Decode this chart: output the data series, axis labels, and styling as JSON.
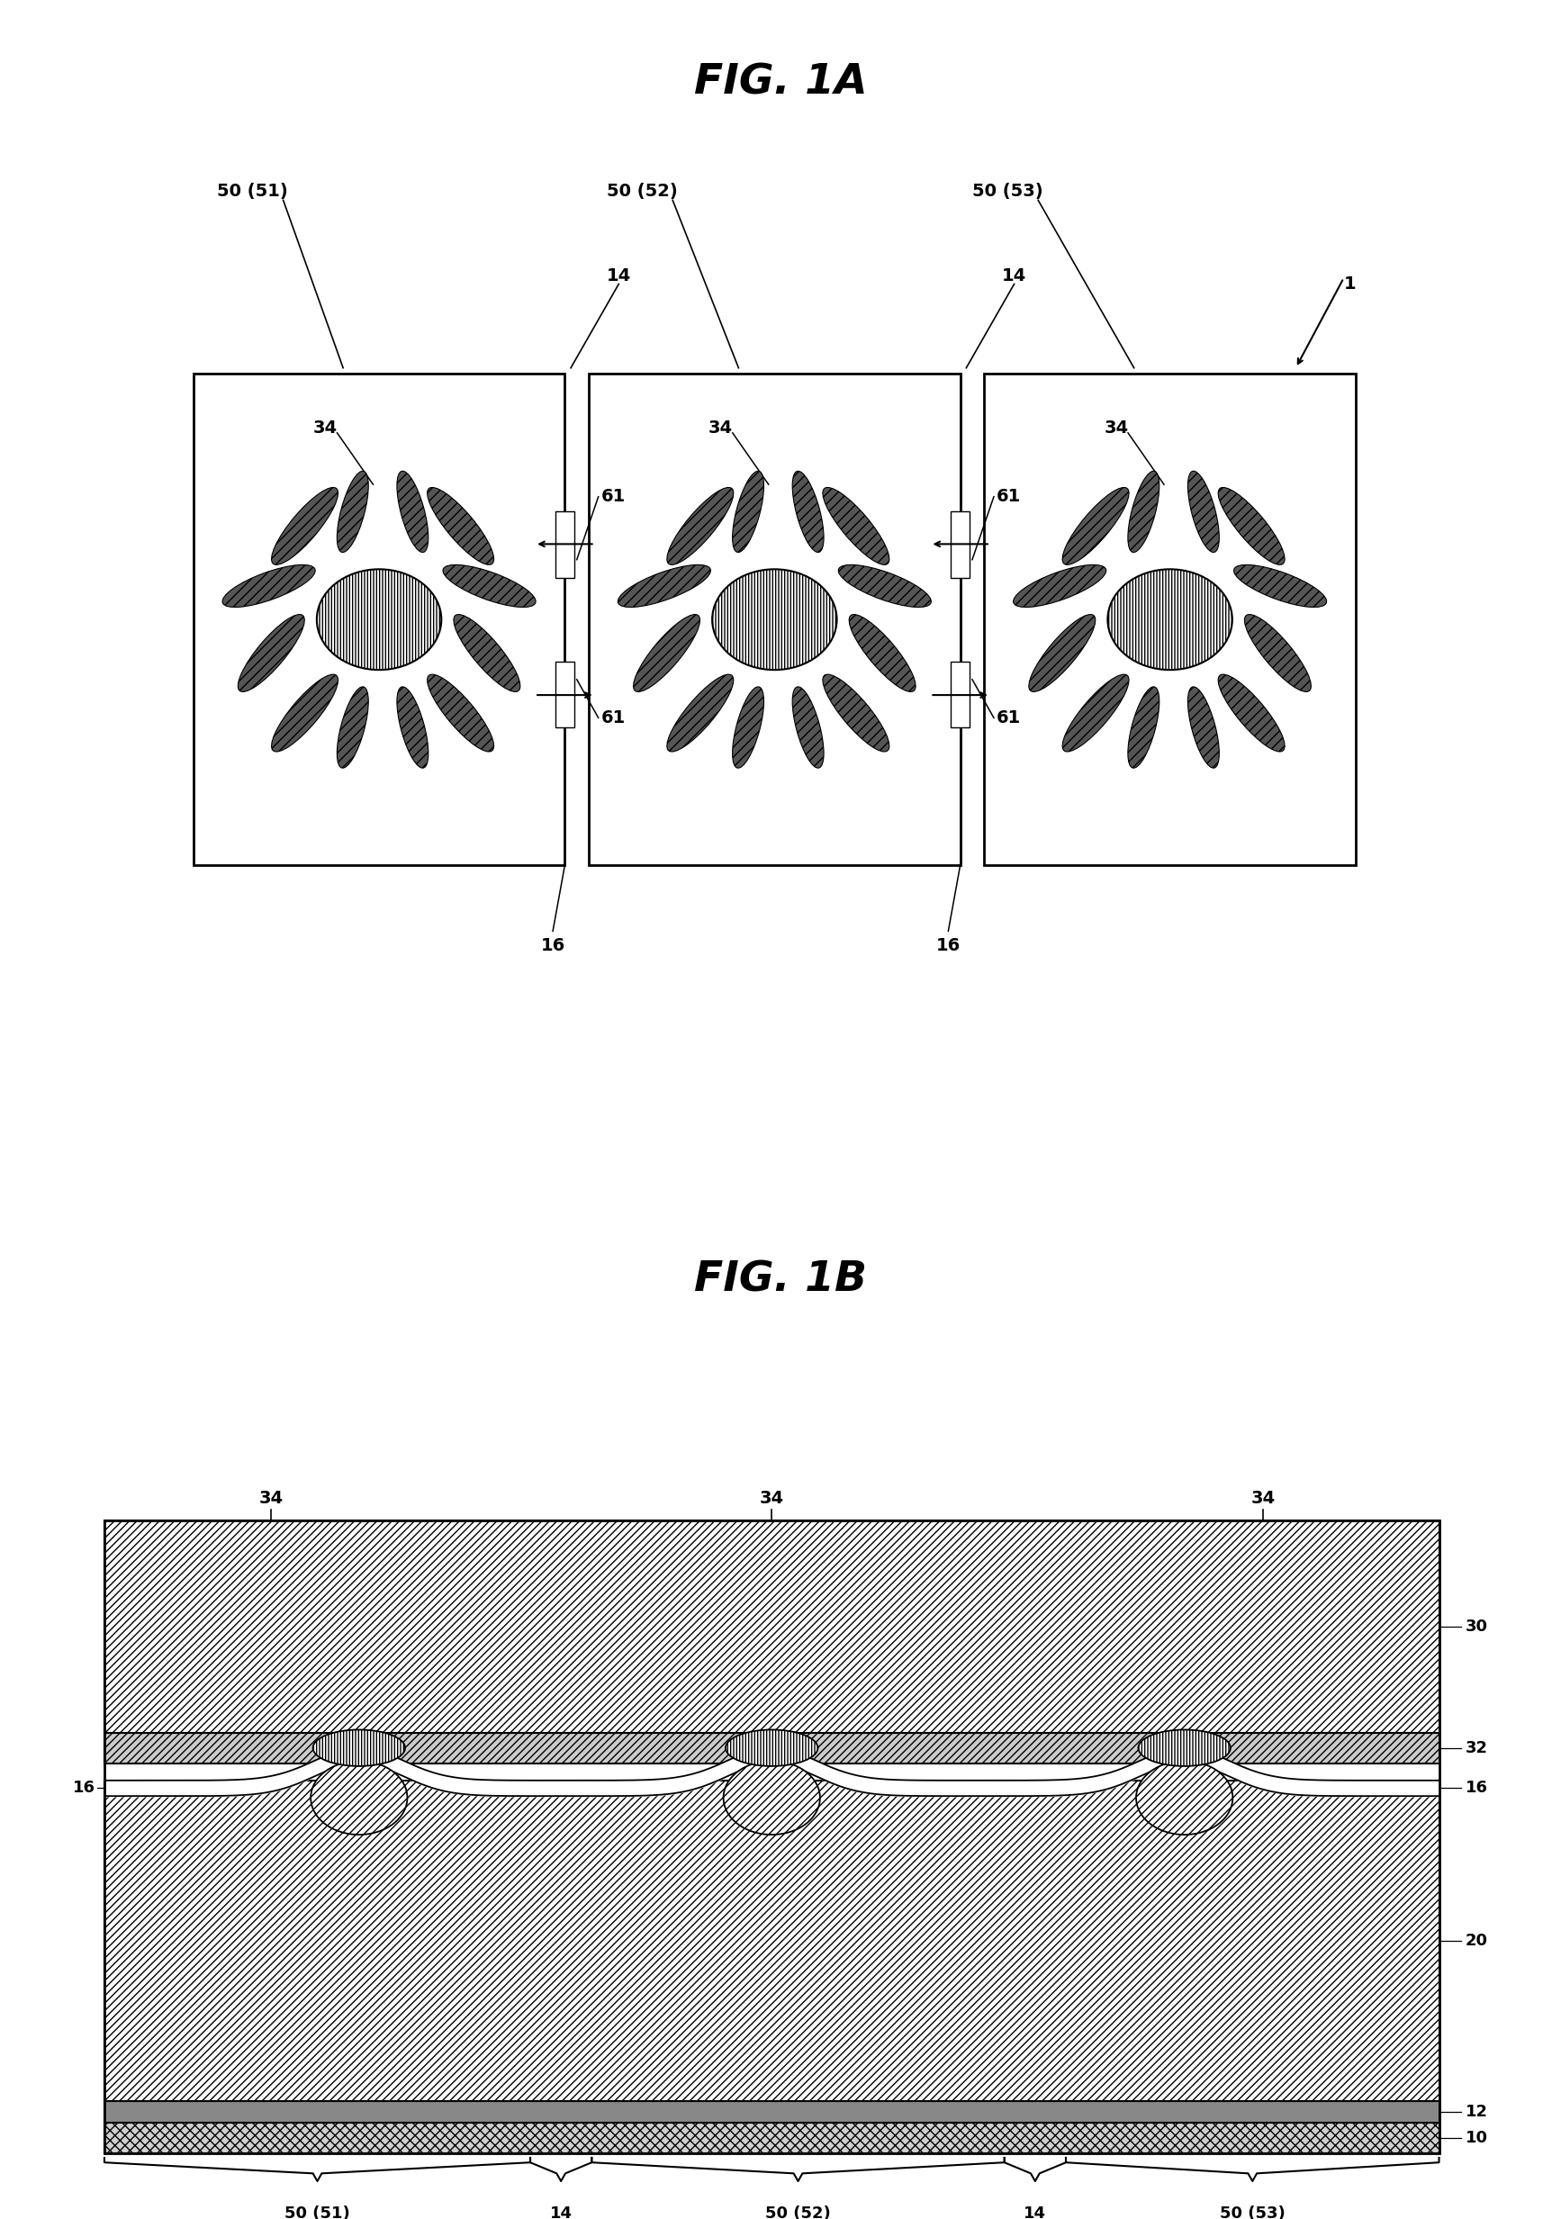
{
  "fig_title_A": "FIG. 1A",
  "fig_title_B": "FIG. 1B",
  "bg_color": "#ffffff",
  "line_color": "#000000",
  "pixel_labels": [
    "50 (51)",
    "50 (52)",
    "50 (53)"
  ],
  "label_1": "1",
  "label_14": "14",
  "label_16": "16",
  "label_34": "34",
  "label_61": "61",
  "label_30": "30",
  "label_32": "32",
  "label_20": "20",
  "label_12": "12",
  "label_10": "10"
}
